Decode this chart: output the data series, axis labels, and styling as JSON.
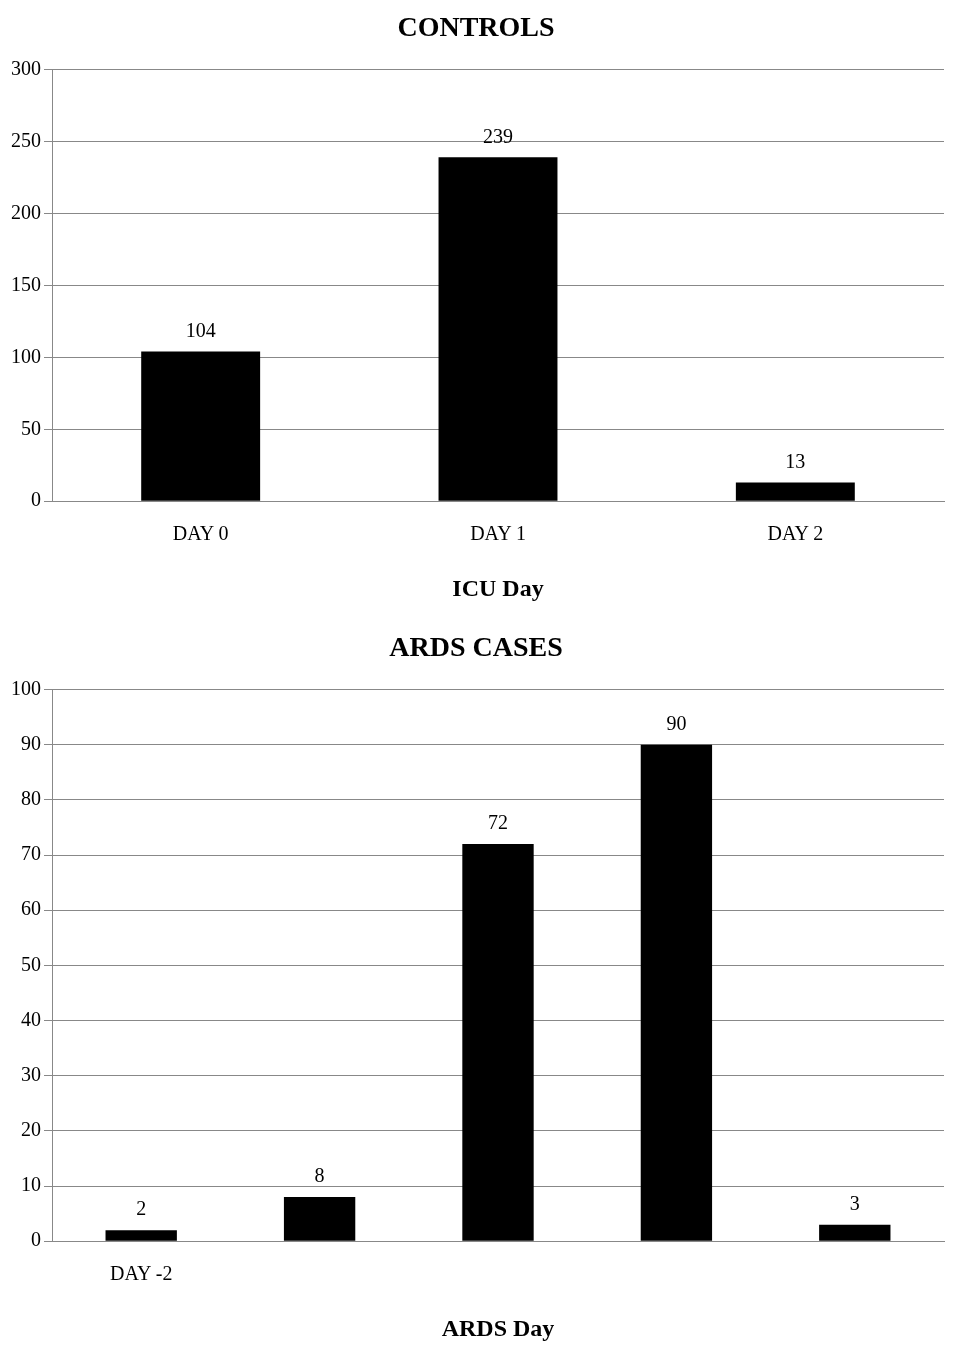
{
  "chart_data": [
    {
      "type": "bar",
      "title": "CONTROLS",
      "xlabel": "ICU Day",
      "categories": [
        "DAY 0",
        "DAY 1",
        "DAY 2"
      ],
      "values": [
        104,
        239,
        13
      ],
      "color": "#000000",
      "ylim": [
        0,
        300
      ],
      "yticks": [
        0,
        50,
        100,
        150,
        200,
        250,
        300
      ],
      "grid": "y",
      "data_labels": true
    },
    {
      "type": "bar",
      "title": "ARDS CASES",
      "xlabel": "ARDS Day",
      "categories": [
        "DAY -2",
        null,
        null,
        null,
        null
      ],
      "values": [
        2,
        8,
        72,
        90,
        3
      ],
      "color": "#000000",
      "ylim": [
        0,
        100
      ],
      "yticks": [
        0,
        10,
        20,
        30,
        40,
        50,
        60,
        70,
        80,
        90,
        100
      ],
      "grid": "y",
      "data_labels": true
    }
  ]
}
